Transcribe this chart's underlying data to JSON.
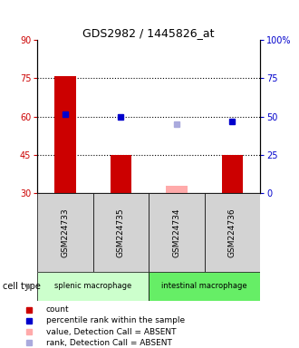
{
  "title": "GDS2982 / 1445826_at",
  "samples": [
    "GSM224733",
    "GSM224735",
    "GSM224734",
    "GSM224736"
  ],
  "bar_values": [
    76,
    45,
    null,
    45
  ],
  "bar_absent_values": [
    null,
    null,
    33,
    null
  ],
  "percentile_values": [
    61,
    60,
    null,
    58
  ],
  "percentile_absent_values": [
    null,
    null,
    57,
    null
  ],
  "bar_color": "#cc0000",
  "bar_absent_color": "#ffaaaa",
  "percentile_color": "#0000cc",
  "percentile_absent_color": "#aaaadd",
  "ylim_left": [
    30,
    90
  ],
  "ylim_right": [
    0,
    100
  ],
  "yticks_left": [
    30,
    45,
    60,
    75,
    90
  ],
  "yticks_right": [
    0,
    25,
    50,
    75,
    100
  ],
  "ytick_labels_right": [
    "0",
    "25",
    "50",
    "75",
    "100%"
  ],
  "hlines": [
    45,
    60,
    75
  ],
  "bar_width": 0.38,
  "legend_items": [
    {
      "color": "#cc0000",
      "label": "count"
    },
    {
      "color": "#0000cc",
      "label": "percentile rank within the sample"
    },
    {
      "color": "#ffaaaa",
      "label": "value, Detection Call = ABSENT"
    },
    {
      "color": "#aaaadd",
      "label": "rank, Detection Call = ABSENT"
    }
  ],
  "cell_type_label": "cell type",
  "group_label_splenic": "splenic macrophage",
  "group_label_intestinal": "intestinal macrophage",
  "splenic_color": "#ccffcc",
  "intestinal_color": "#66ee66",
  "tick_color_left": "#cc0000",
  "tick_color_right": "#0000cc",
  "sample_box_color": "#d3d3d3",
  "title_fontsize": 9,
  "tick_fontsize": 7,
  "label_fontsize": 6.5,
  "legend_fontsize": 6.5
}
